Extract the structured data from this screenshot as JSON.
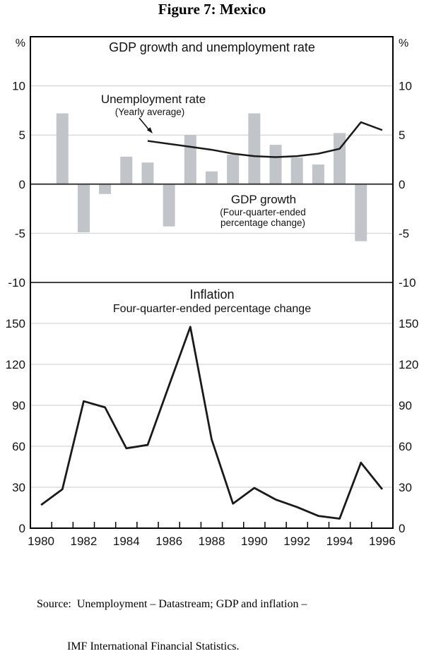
{
  "figure": {
    "title": "Figure 7: Mexico"
  },
  "source": {
    "line1": "Source:  Unemployment – Datastream; GDP and inflation –",
    "line2": "IMF International Financial Statistics."
  },
  "chart_data": [
    {
      "type": "bar+line",
      "panel": "top",
      "title": "GDP growth and unemployment rate",
      "unit": "%",
      "ylim": [
        -10,
        15
      ],
      "yticks": [
        -10,
        -5,
        0,
        5,
        10
      ],
      "grid": true,
      "bar_series": {
        "name": "GDP growth",
        "note": "Four-quarter-ended percentage change",
        "years": [
          1981,
          1982,
          1983,
          1984,
          1985,
          1986,
          1987,
          1988,
          1989,
          1990,
          1991,
          1992,
          1993,
          1994,
          1995
        ],
        "values": [
          7.2,
          -4.9,
          -1.0,
          2.8,
          2.2,
          -4.3,
          5.0,
          1.3,
          3.0,
          7.2,
          4.0,
          2.7,
          2.0,
          5.2,
          -5.8
        ]
      },
      "line_series": {
        "name": "Unemployment rate",
        "note": "Yearly average",
        "years": [
          1985,
          1986,
          1987,
          1988,
          1989,
          1990,
          1991,
          1992,
          1993,
          1994,
          1995,
          1996
        ],
        "values": [
          4.4,
          4.1,
          3.8,
          3.5,
          3.1,
          2.85,
          2.75,
          2.85,
          3.1,
          3.6,
          6.3,
          5.5
        ]
      },
      "annotations": {
        "line_label": "Unemployment rate",
        "line_sublabel": "(Yearly average)",
        "bar_label": "GDP growth",
        "bar_sublabel1": "(Four-quarter-ended",
        "bar_sublabel2": "percentage change)"
      }
    },
    {
      "type": "line",
      "panel": "bottom",
      "title": "Inflation",
      "subtitle": "Four-quarter-ended percentage change",
      "ylim": [
        0,
        180
      ],
      "yticks": [
        0,
        30,
        60,
        90,
        120,
        150
      ],
      "xlim": [
        1979.5,
        1996.5
      ],
      "grid": true,
      "xtick_labels": [
        "1980",
        "1982",
        "1984",
        "1986",
        "1988",
        "1990",
        "1992",
        "1994",
        "1996"
      ],
      "x": [
        1980,
        1981,
        1982,
        1983,
        1984,
        1985,
        1986,
        1987,
        1988,
        1989,
        1990,
        1991,
        1992,
        1993,
        1994,
        1995,
        1996
      ],
      "values": [
        17,
        28.5,
        93,
        88.5,
        58.5,
        61,
        104.5,
        147.5,
        65,
        18,
        29.5,
        21,
        15.5,
        9,
        7,
        48,
        28.5
      ]
    }
  ],
  "colors": {
    "bar": "#c1c4c8",
    "line": "#1a1a1a",
    "gridline": "#cbcbcb",
    "zero_line": "#3c3c3c",
    "frame": "#000000"
  }
}
